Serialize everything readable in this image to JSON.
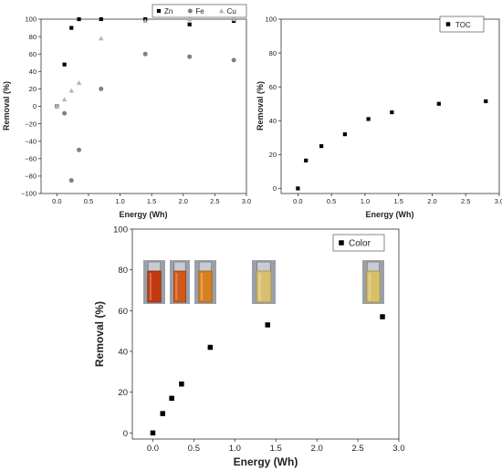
{
  "chart_data": [
    {
      "type": "scatter",
      "xlabel": "Energy (Wh)",
      "ylabel": "Removal (%)",
      "xlim": [
        -0.25,
        3.0
      ],
      "ylim": [
        -100,
        100
      ],
      "xticks": [
        "0.0",
        "0.5",
        "1.0",
        "1.5",
        "2.0",
        "2.5",
        "3.0"
      ],
      "yticks": [
        "100",
        "80",
        "60",
        "40",
        "20",
        "0",
        "−20",
        "−40",
        "−60",
        "−80",
        "−100"
      ],
      "legend_position": "top",
      "series": [
        {
          "name": "Zn",
          "marker": "square",
          "color": "#000000",
          "x": [
            0,
            0.12,
            0.23,
            0.35,
            0.7,
            1.4,
            2.1,
            2.8
          ],
          "y": [
            0,
            48,
            90,
            100,
            100,
            100,
            94,
            98
          ]
        },
        {
          "name": "Fe",
          "marker": "circle",
          "color": "#808080",
          "x": [
            0,
            0.12,
            0.23,
            0.35,
            0.7,
            1.4,
            2.1,
            2.8
          ],
          "y": [
            0,
            -8,
            -85,
            -50,
            20,
            60,
            57,
            53
          ]
        },
        {
          "name": "Cu",
          "marker": "triangle",
          "color": "#b4b4b4",
          "x": [
            0,
            0.12,
            0.23,
            0.35,
            0.7,
            1.4,
            2.1,
            2.8
          ],
          "y": [
            0,
            8,
            18,
            27,
            78,
            98,
            100,
            100
          ]
        }
      ]
    },
    {
      "type": "scatter",
      "xlabel": "Energy (Wh)",
      "ylabel": "Removal (%)",
      "xlim": [
        -0.25,
        3.0
      ],
      "ylim": [
        -3,
        100
      ],
      "xticks": [
        "0.0",
        "0.5",
        "1.0",
        "1.5",
        "2.0",
        "2.5",
        "3.0"
      ],
      "yticks": [
        "100",
        "80",
        "60",
        "40",
        "20",
        "0"
      ],
      "legend_position": "top-right",
      "series": [
        {
          "name": "TOC",
          "marker": "square",
          "color": "#000000",
          "x": [
            0,
            0.12,
            0.35,
            0.7,
            1.05,
            1.4,
            2.1,
            2.8
          ],
          "y": [
            0,
            16.5,
            25,
            32,
            41,
            45,
            50,
            51.5
          ]
        }
      ]
    },
    {
      "type": "scatter",
      "xlabel": "Energy (Wh)",
      "ylabel": "Removal (%)",
      "xlim": [
        -0.25,
        3.0
      ],
      "ylim": [
        -3,
        100
      ],
      "xticks": [
        "0.0",
        "0.5",
        "1.0",
        "1.5",
        "2.0",
        "2.5",
        "3.0"
      ],
      "yticks": [
        "100",
        "80",
        "60",
        "40",
        "20",
        "0"
      ],
      "legend_position": "top-right",
      "series": [
        {
          "name": "Color",
          "marker": "square",
          "color": "#000000",
          "x": [
            0,
            0.12,
            0.23,
            0.35,
            0.7,
            1.4,
            2.8
          ],
          "y": [
            0,
            9.5,
            17,
            24,
            42,
            53,
            57
          ]
        }
      ],
      "inset_photos": [
        {
          "liquid": "#c03a10",
          "liquid_dark": "#8a2508"
        },
        {
          "liquid": "#d05818",
          "liquid_dark": "#a03c0c"
        },
        {
          "liquid": "#d8801e",
          "liquid_dark": "#a85a10"
        },
        {
          "liquid": "#d8c070",
          "liquid_dark": "#b09040"
        },
        {
          "liquid": "#d8c068",
          "liquid_dark": "#aa9040"
        }
      ]
    }
  ]
}
